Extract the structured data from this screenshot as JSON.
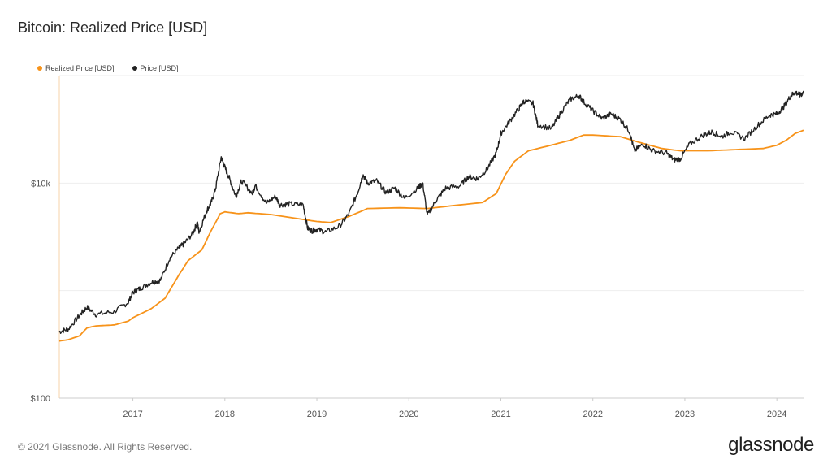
{
  "colors": {
    "realized": "#f7931a",
    "price": "#222222",
    "grid": "#eeeeee"
  },
  "legend": [
    {
      "label": "Realized Price [USD]",
      "color": "#f7931a"
    },
    {
      "label": "Price [USD]",
      "color": "#222222"
    }
  ],
  "footer": "© 2024 Glassnode. All Rights Reserved.",
  "brand": "glassnode",
  "chart_data": {
    "type": "line",
    "title": "Bitcoin: Realized Price [USD]",
    "y_scale": "log",
    "ylim": [
      100,
      100000
    ],
    "y_ticks": [
      {
        "value": 100,
        "label": "$100"
      },
      {
        "value": 10000,
        "label": "$10k"
      }
    ],
    "y_grid_values": [
      1000,
      10000,
      100000
    ],
    "xlim": [
      2016.2,
      2024.29
    ],
    "x_ticks": [
      "2017",
      "2018",
      "2019",
      "2020",
      "2021",
      "2022",
      "2023",
      "2024"
    ],
    "series": [
      {
        "name": "Realized Price [USD]",
        "color": "#f7931a",
        "points": [
          [
            2016.2,
            340
          ],
          [
            2016.3,
            350
          ],
          [
            2016.42,
            380
          ],
          [
            2016.5,
            450
          ],
          [
            2016.6,
            470
          ],
          [
            2016.8,
            480
          ],
          [
            2016.95,
            520
          ],
          [
            2017.0,
            560
          ],
          [
            2017.2,
            680
          ],
          [
            2017.35,
            850
          ],
          [
            2017.5,
            1400
          ],
          [
            2017.6,
            1900
          ],
          [
            2017.75,
            2400
          ],
          [
            2017.85,
            3600
          ],
          [
            2017.95,
            5200
          ],
          [
            2018.0,
            5400
          ],
          [
            2018.15,
            5200
          ],
          [
            2018.25,
            5300
          ],
          [
            2018.5,
            5100
          ],
          [
            2018.85,
            4600
          ],
          [
            2019.0,
            4400
          ],
          [
            2019.15,
            4300
          ],
          [
            2019.35,
            4900
          ],
          [
            2019.55,
            5800
          ],
          [
            2019.9,
            5900
          ],
          [
            2020.2,
            5800
          ],
          [
            2020.5,
            6200
          ],
          [
            2020.8,
            6600
          ],
          [
            2020.95,
            8000
          ],
          [
            2021.05,
            12000
          ],
          [
            2021.15,
            16000
          ],
          [
            2021.3,
            20000
          ],
          [
            2021.5,
            22000
          ],
          [
            2021.75,
            25000
          ],
          [
            2021.9,
            28000
          ],
          [
            2022.0,
            28000
          ],
          [
            2022.3,
            27000
          ],
          [
            2022.5,
            24000
          ],
          [
            2022.75,
            21000
          ],
          [
            2022.95,
            20000
          ],
          [
            2023.25,
            20000
          ],
          [
            2023.55,
            20500
          ],
          [
            2023.85,
            21000
          ],
          [
            2024.0,
            22500
          ],
          [
            2024.1,
            25000
          ],
          [
            2024.2,
            29000
          ],
          [
            2024.29,
            31000
          ]
        ]
      },
      {
        "name": "Price [USD]",
        "color": "#222222",
        "points": [
          [
            2016.2,
            415
          ],
          [
            2016.3,
            440
          ],
          [
            2016.42,
            590
          ],
          [
            2016.5,
            700
          ],
          [
            2016.6,
            600
          ],
          [
            2016.8,
            640
          ],
          [
            2016.95,
            780
          ],
          [
            2017.0,
            960
          ],
          [
            2017.08,
            1050
          ],
          [
            2017.2,
            1200
          ],
          [
            2017.3,
            1250
          ],
          [
            2017.4,
            2000
          ],
          [
            2017.5,
            2500
          ],
          [
            2017.55,
            2700
          ],
          [
            2017.65,
            3400
          ],
          [
            2017.7,
            4300
          ],
          [
            2017.72,
            3500
          ],
          [
            2017.8,
            5500
          ],
          [
            2017.85,
            6500
          ],
          [
            2017.9,
            9000
          ],
          [
            2017.96,
            17500
          ],
          [
            2018.0,
            14000
          ],
          [
            2018.05,
            11000
          ],
          [
            2018.12,
            7500
          ],
          [
            2018.18,
            10500
          ],
          [
            2018.3,
            8000
          ],
          [
            2018.33,
            9500
          ],
          [
            2018.45,
            6500
          ],
          [
            2018.55,
            7500
          ],
          [
            2018.6,
            6300
          ],
          [
            2018.7,
            6400
          ],
          [
            2018.85,
            6300
          ],
          [
            2018.9,
            3800
          ],
          [
            2018.95,
            3600
          ],
          [
            2019.0,
            3700
          ],
          [
            2019.1,
            3500
          ],
          [
            2019.25,
            4000
          ],
          [
            2019.35,
            5200
          ],
          [
            2019.45,
            8500
          ],
          [
            2019.5,
            12000
          ],
          [
            2019.55,
            10000
          ],
          [
            2019.65,
            10500
          ],
          [
            2019.75,
            8200
          ],
          [
            2019.85,
            9000
          ],
          [
            2019.95,
            7200
          ],
          [
            2020.1,
            9000
          ],
          [
            2020.15,
            10000
          ],
          [
            2020.2,
            5000
          ],
          [
            2020.3,
            7000
          ],
          [
            2020.4,
            9000
          ],
          [
            2020.55,
            9400
          ],
          [
            2020.65,
            11500
          ],
          [
            2020.75,
            11000
          ],
          [
            2020.85,
            13500
          ],
          [
            2020.95,
            19000
          ],
          [
            2021.0,
            29000
          ],
          [
            2021.1,
            38000
          ],
          [
            2021.2,
            50000
          ],
          [
            2021.25,
            58000
          ],
          [
            2021.35,
            55000
          ],
          [
            2021.4,
            35000
          ],
          [
            2021.55,
            32000
          ],
          [
            2021.65,
            45000
          ],
          [
            2021.75,
            60000
          ],
          [
            2021.85,
            65000
          ],
          [
            2021.9,
            57000
          ],
          [
            2022.0,
            47000
          ],
          [
            2022.1,
            40000
          ],
          [
            2022.2,
            44000
          ],
          [
            2022.3,
            39000
          ],
          [
            2022.4,
            30000
          ],
          [
            2022.45,
            20000
          ],
          [
            2022.55,
            23000
          ],
          [
            2022.65,
            20000
          ],
          [
            2022.8,
            19000
          ],
          [
            2022.88,
            16500
          ],
          [
            2022.95,
            16800
          ],
          [
            2023.05,
            23000
          ],
          [
            2023.2,
            28000
          ],
          [
            2023.3,
            30000
          ],
          [
            2023.4,
            27000
          ],
          [
            2023.5,
            30000
          ],
          [
            2023.65,
            26000
          ],
          [
            2023.8,
            35000
          ],
          [
            2023.92,
            43000
          ],
          [
            2024.0,
            44000
          ],
          [
            2024.08,
            52000
          ],
          [
            2024.15,
            65000
          ],
          [
            2024.2,
            70000
          ],
          [
            2024.25,
            66000
          ],
          [
            2024.29,
            69000
          ]
        ]
      }
    ]
  }
}
